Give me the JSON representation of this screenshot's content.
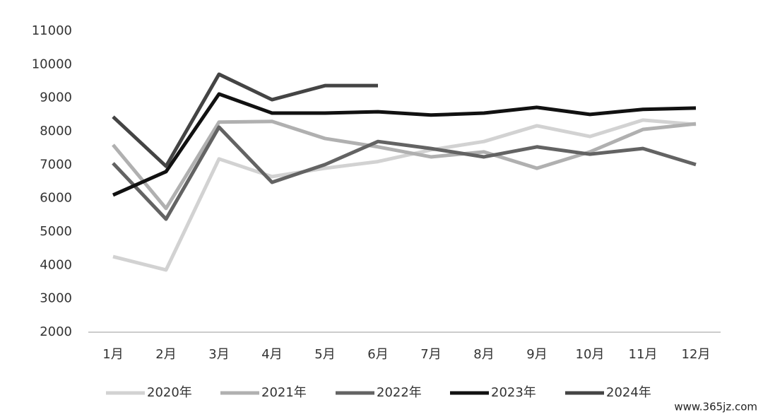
{
  "chart_data": {
    "type": "line",
    "categories": [
      "1月",
      "2月",
      "3月",
      "4月",
      "5月",
      "6月",
      "7月",
      "8月",
      "9月",
      "10月",
      "11月",
      "12月"
    ],
    "ylim": [
      2000,
      11000
    ],
    "yticks": [
      2000,
      3000,
      4000,
      5000,
      6000,
      7000,
      8000,
      9000,
      10000,
      11000
    ],
    "grid": false,
    "legend": "bottom",
    "series": [
      {
        "name": "2020年",
        "color": "#d2d2d2",
        "values": [
          4260,
          3860,
          7180,
          6650,
          6900,
          7100,
          7450,
          7700,
          8170,
          7850,
          8340,
          8210
        ]
      },
      {
        "name": "2021年",
        "color": "#b0b0b0",
        "values": [
          7600,
          5700,
          8280,
          8300,
          7790,
          7540,
          7240,
          7390,
          6900,
          7390,
          8060,
          8230
        ]
      },
      {
        "name": "2022年",
        "color": "#636363",
        "values": [
          7050,
          5380,
          8130,
          6480,
          7010,
          7700,
          7490,
          7240,
          7540,
          7320,
          7490,
          7010
        ]
      },
      {
        "name": "2023年",
        "color": "#111111",
        "values": [
          6100,
          6800,
          9120,
          8550,
          8550,
          8590,
          8490,
          8550,
          8720,
          8510,
          8660,
          8700
        ]
      },
      {
        "name": "2024年",
        "color": "#444444",
        "values": [
          8440,
          6960,
          9710,
          8950,
          9370,
          9370,
          null,
          null,
          null,
          null,
          null,
          null
        ]
      }
    ],
    "watermark": "www.365jz.com"
  }
}
